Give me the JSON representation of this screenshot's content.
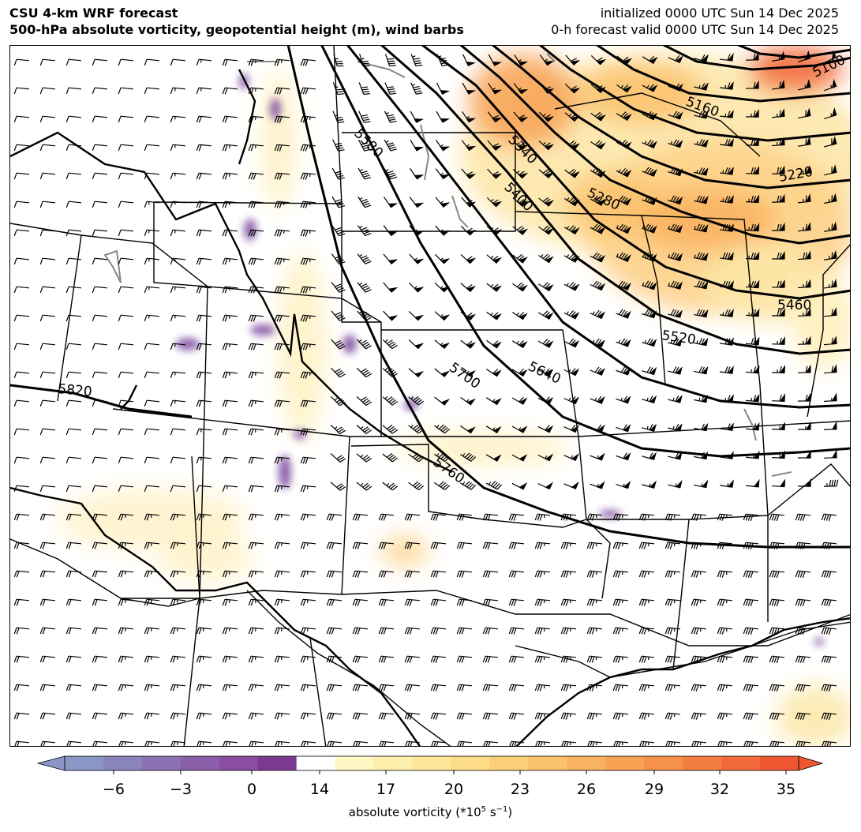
{
  "header": {
    "title_line1": "CSU 4-km WRF forecast",
    "title_line2": "500-hPa absolute vorticity, geopotential height (m), wind barbs",
    "init_line": "initialized 0000 UTC Sun 14 Dec 2025",
    "valid_line": "0-h forecast valid 0000 UTC Sun 14 Dec 2025"
  },
  "map": {
    "height_contour_labels": [
      "5100",
      "5160",
      "5220",
      "5280",
      "5340",
      "5400",
      "5460",
      "5520",
      "5580",
      "5640",
      "5700",
      "5760",
      "5820"
    ],
    "colors": {
      "contour": "#000000",
      "state_border": "#000000",
      "lake": "#888888",
      "barb": "#000000",
      "vort_low": "#fff3b0",
      "vort_mid": "#fdbf6f",
      "vort_high": "#f25a2a",
      "vort_neg": "#7b4aa0"
    }
  },
  "colorbar": {
    "label": "absolute vorticity (*10",
    "label_sup": "5",
    "label_unit": " s",
    "label_unit_sup": "−1",
    "label_end": ")",
    "ticks": [
      "−6",
      "−3",
      "0",
      "14",
      "17",
      "20",
      "23",
      "26",
      "29",
      "32",
      "35"
    ],
    "colors": [
      "#8a97c6",
      "#8a84bd",
      "#8b72b4",
      "#8a5faa",
      "#8a4ea0",
      "#7b3a90",
      "#ffffff",
      "#fff7c4",
      "#ffefad",
      "#ffe79a",
      "#fddd88",
      "#fcd079",
      "#fbc26c",
      "#f9b25f",
      "#f8a254",
      "#f6914b",
      "#f47e42",
      "#f26a3a",
      "#ef5733"
    ]
  }
}
